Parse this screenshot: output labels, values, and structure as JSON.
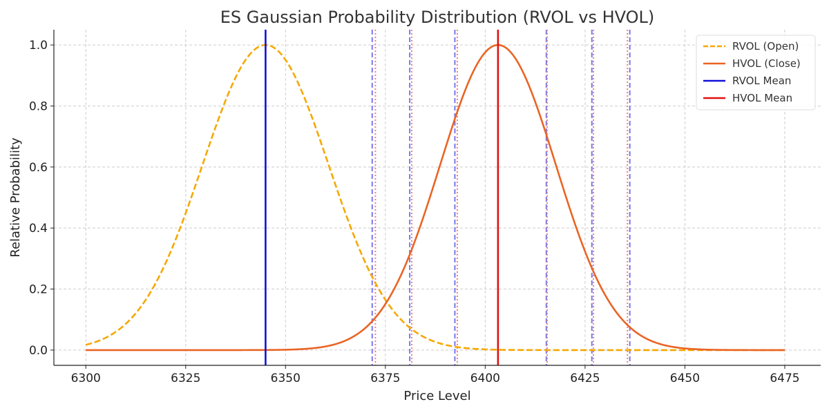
{
  "chart_data": {
    "type": "line",
    "title": "ES Gaussian Probability Distribution (RVOL vs HVOL)",
    "xlabel": "Price Level",
    "ylabel": "Relative Probability",
    "xlim": [
      6292,
      6484
    ],
    "ylim": [
      -0.05,
      1.05
    ],
    "xticks": [
      6300,
      6325,
      6350,
      6375,
      6400,
      6425,
      6450,
      6475
    ],
    "yticks": [
      0.0,
      0.2,
      0.4,
      0.6,
      0.8,
      1.0
    ],
    "x_range": [
      6300,
      6475
    ],
    "grid": true,
    "legend_position": "top-right",
    "series": [
      {
        "name": "RVOL (Open)",
        "kind": "gaussian",
        "mean": 6345,
        "sigma": 15.8,
        "color": "#f5a800",
        "dash": "dashed"
      },
      {
        "name": "HVOL (Close)",
        "kind": "gaussian",
        "mean": 6403.2,
        "sigma": 14.5,
        "color": "#ea6424",
        "dash": "solid"
      },
      {
        "name": "RVOL Mean",
        "kind": "vline",
        "x": 6345,
        "color": "#1010dd",
        "dash": "solid"
      },
      {
        "name": "HVOL Mean",
        "kind": "vline",
        "x": 6403.2,
        "color": "#e01010",
        "dash": "solid"
      }
    ],
    "reference_lines": {
      "blue_dashed": {
        "color": "#7777ee",
        "x": [
          6371.7,
          6381.1,
          6392.4,
          6415.3,
          6426.7,
          6436.2
        ]
      },
      "red_dotted": {
        "color": "#f08080",
        "x": [
          6372.5,
          6381.6,
          6393.0,
          6415.5,
          6427.1,
          6435.6
        ]
      }
    }
  }
}
